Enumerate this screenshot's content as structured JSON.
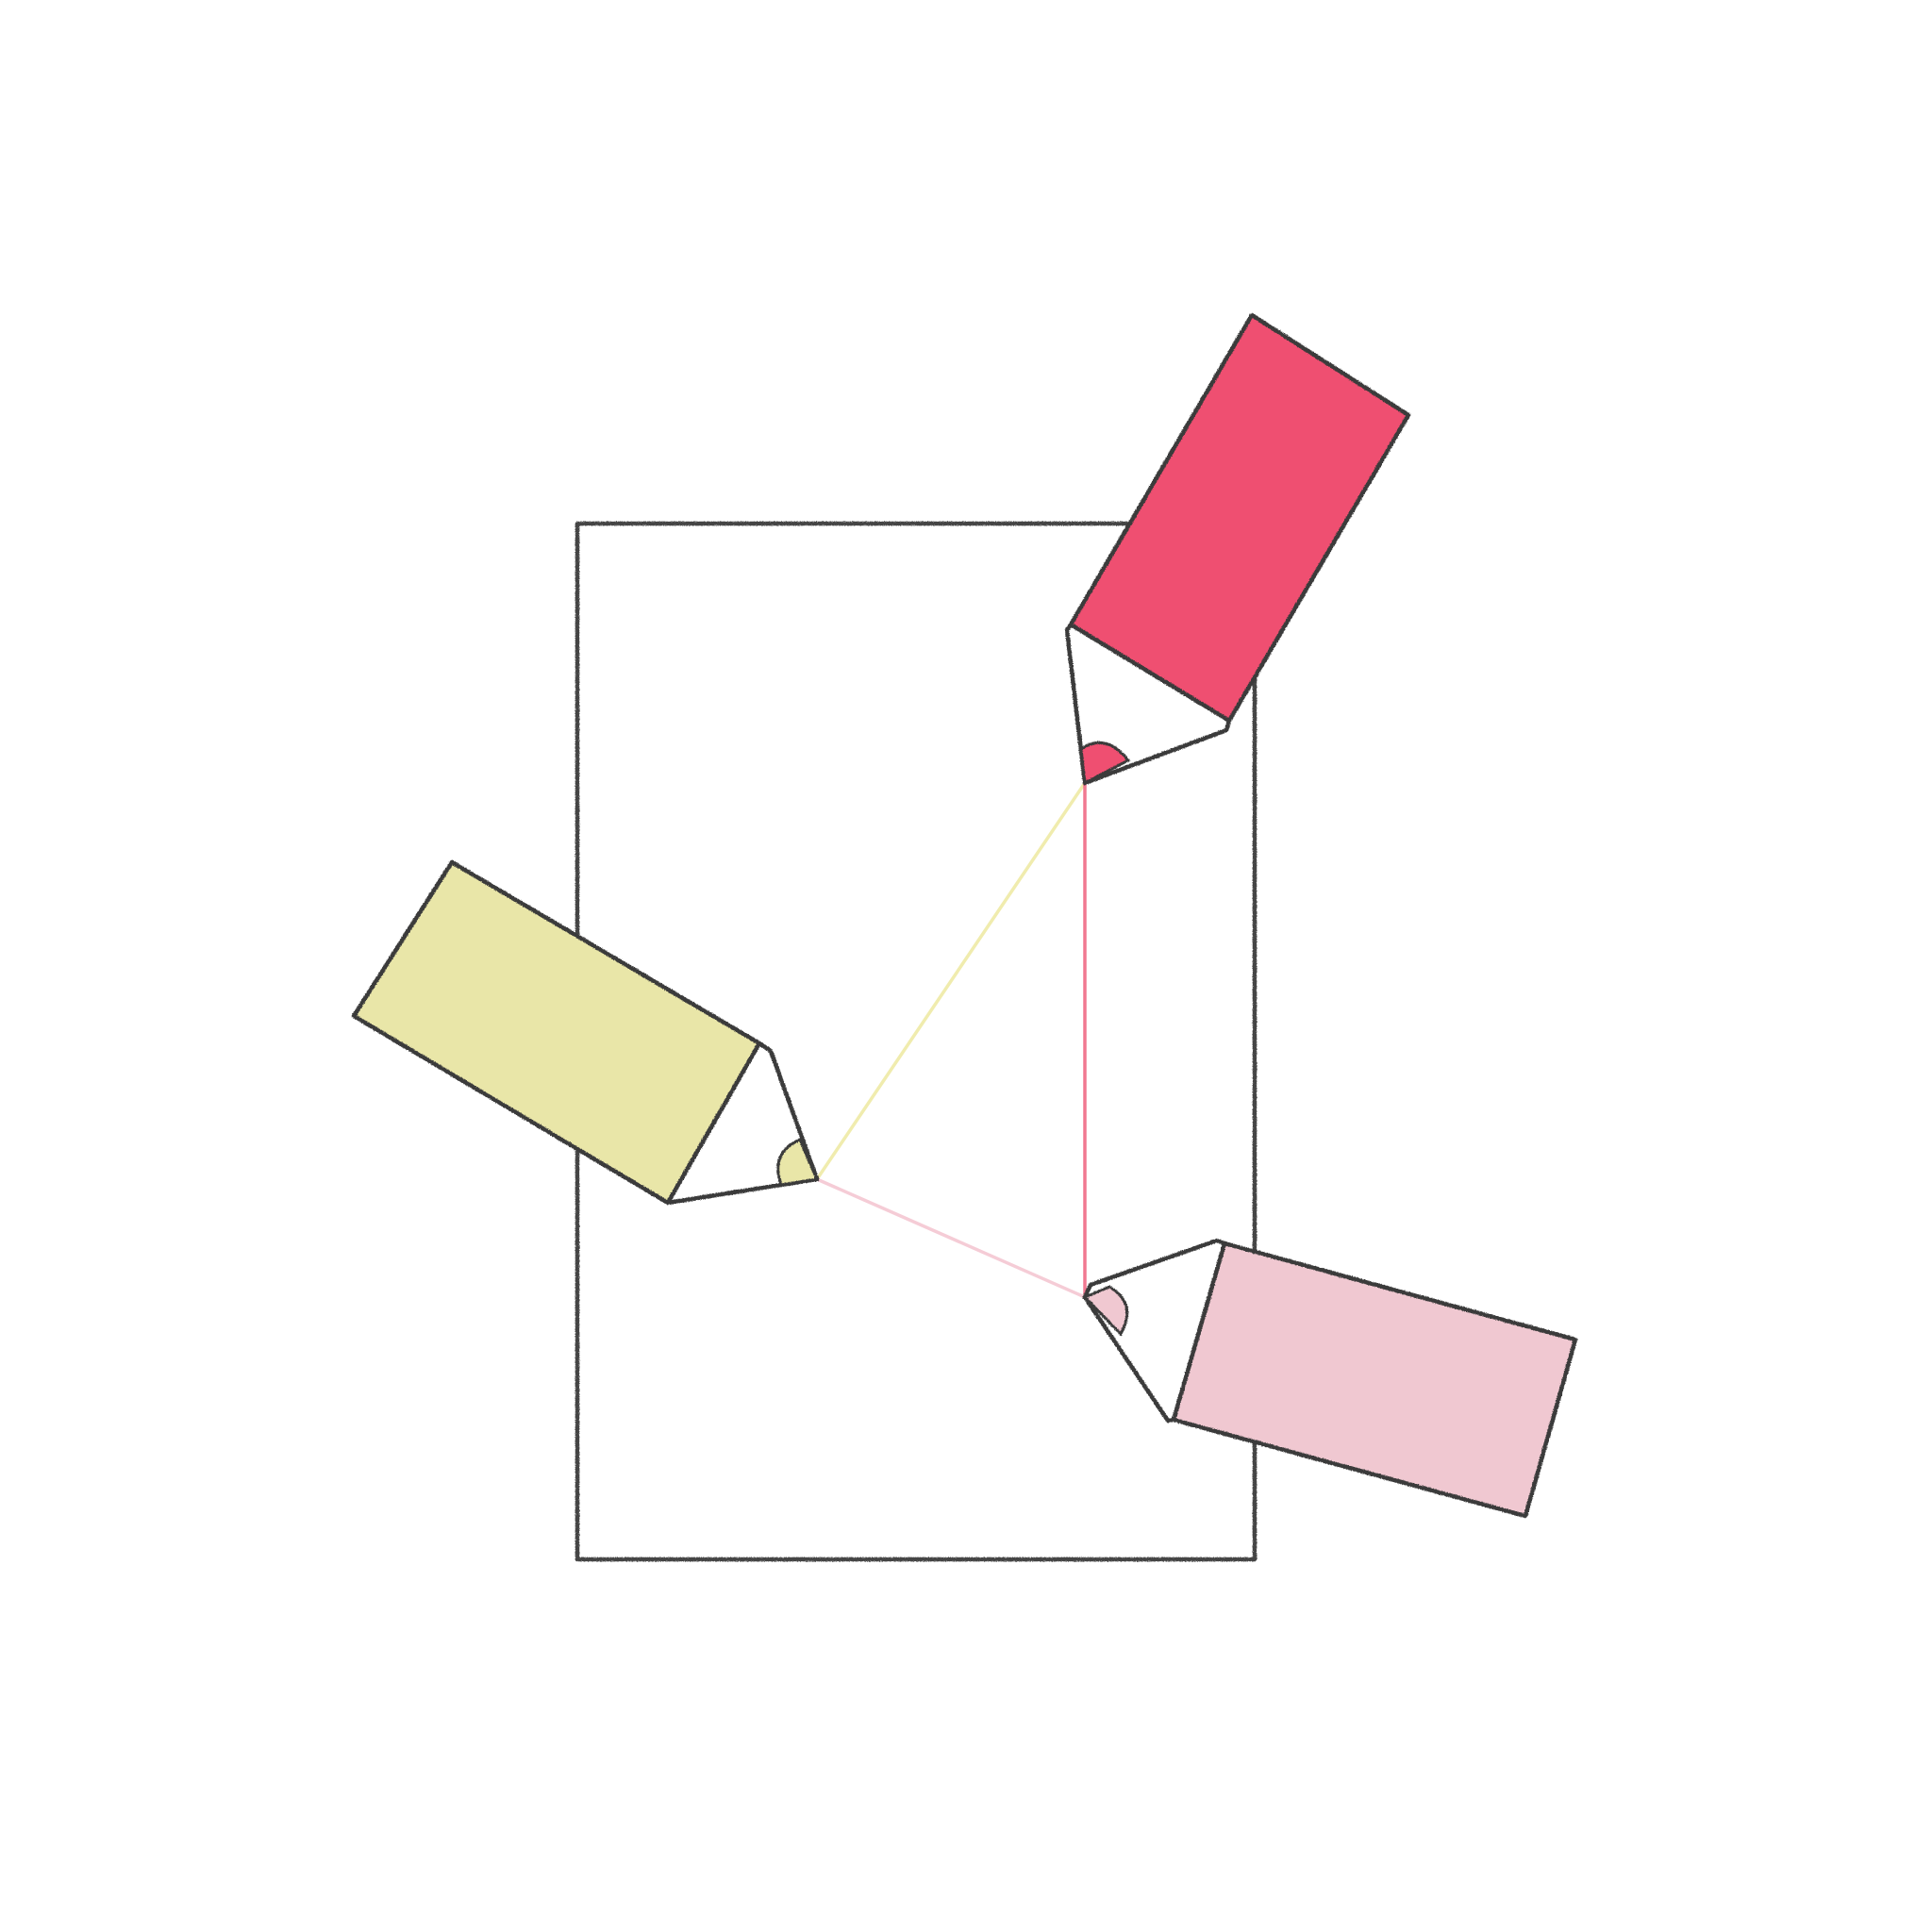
{
  "colors": {
    "background": "#ffffff",
    "outline": "#444444",
    "pencil_red": "#ef4f71",
    "pencil_yellow": "#e9e6a8",
    "pencil_pink": "#f0c8d1",
    "line_red": "#f06a86",
    "line_yellow": "#efeaa6",
    "line_pink": "#f5c7d2"
  },
  "illustration": {
    "paper": "paper-rectangle",
    "pencils": [
      {
        "name": "red-pencil",
        "color_key": "pencil_red"
      },
      {
        "name": "yellow-pencil",
        "color_key": "pencil_yellow"
      },
      {
        "name": "pink-pencil",
        "color_key": "pencil_pink"
      }
    ]
  }
}
